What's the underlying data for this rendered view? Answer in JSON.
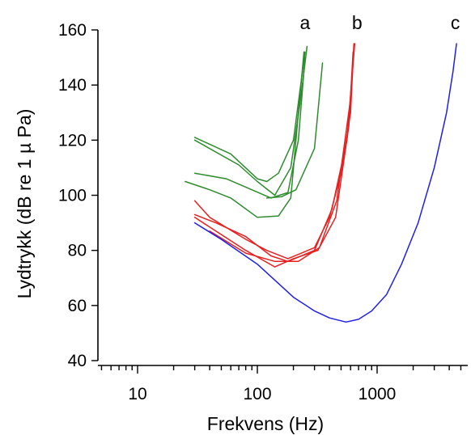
{
  "chart_data": {
    "type": "line",
    "xlabel": "Frekvens (Hz)",
    "ylabel": "Lydtrykk (dB re 1  µ Pa)",
    "xscale": "log",
    "xlim": [
      5,
      5000
    ],
    "ylim": [
      40,
      160
    ],
    "xticks": [
      {
        "value": 10,
        "label": "10"
      },
      {
        "value": 100,
        "label": "100"
      },
      {
        "value": 1000,
        "label": "1000"
      }
    ],
    "yticks": [
      {
        "value": 40,
        "label": "40"
      },
      {
        "value": 60,
        "label": "60"
      },
      {
        "value": 80,
        "label": "80"
      },
      {
        "value": 100,
        "label": "100"
      },
      {
        "value": 120,
        "label": "120"
      },
      {
        "value": 140,
        "label": "140"
      },
      {
        "value": 160,
        "label": "160"
      }
    ],
    "grid": false,
    "curve_labels": [
      {
        "text": "a",
        "x": 250,
        "y": 163
      },
      {
        "text": "b",
        "x": 680,
        "y": 163
      },
      {
        "text": "c",
        "x": 4500,
        "y": 163
      }
    ],
    "series": [
      {
        "group": "a",
        "color": "#2e8b2e",
        "points": [
          [
            30,
            121
          ],
          [
            60,
            115
          ],
          [
            100,
            106
          ],
          [
            120,
            105
          ],
          [
            150,
            108
          ],
          [
            200,
            120
          ],
          [
            250,
            152
          ]
        ]
      },
      {
        "group": "a",
        "color": "#2e8b2e",
        "points": [
          [
            30,
            120
          ],
          [
            70,
            111
          ],
          [
            100,
            105
          ],
          [
            140,
            100
          ],
          [
            190,
            110
          ],
          [
            230,
            135
          ],
          [
            260,
            154
          ]
        ]
      },
      {
        "group": "a",
        "color": "#2e8b2e",
        "points": [
          [
            30,
            108
          ],
          [
            55,
            106
          ],
          [
            90,
            102
          ],
          [
            130,
            99
          ],
          [
            180,
            101
          ],
          [
            220,
            120
          ],
          [
            250,
            150
          ]
        ]
      },
      {
        "group": "a",
        "color": "#2e8b2e",
        "points": [
          [
            25,
            105
          ],
          [
            40,
            102
          ],
          [
            60,
            99
          ],
          [
            100,
            92
          ],
          [
            150,
            92.5
          ],
          [
            190,
            99
          ],
          [
            215,
            125
          ],
          [
            245,
            152
          ]
        ]
      },
      {
        "group": "a",
        "color": "#2e8b2e",
        "points": [
          [
            120,
            99
          ],
          [
            160,
            99.5
          ],
          [
            210,
            102
          ],
          [
            300,
            117
          ],
          [
            350,
            148
          ]
        ]
      },
      {
        "group": "b",
        "color": "#e62020",
        "points": [
          [
            30,
            98
          ],
          [
            40,
            92
          ],
          [
            80,
            84
          ],
          [
            120,
            80
          ],
          [
            180,
            77
          ],
          [
            300,
            81
          ],
          [
            400,
            92
          ],
          [
            500,
            108
          ],
          [
            600,
            130
          ],
          [
            640,
            155
          ]
        ]
      },
      {
        "group": "b",
        "color": "#e62020",
        "points": [
          [
            30,
            93
          ],
          [
            45,
            90
          ],
          [
            80,
            85
          ],
          [
            130,
            78
          ],
          [
            180,
            76
          ],
          [
            300,
            80
          ],
          [
            420,
            95
          ],
          [
            560,
            120
          ],
          [
            650,
            155
          ]
        ]
      },
      {
        "group": "b",
        "color": "#e62020",
        "points": [
          [
            30,
            92
          ],
          [
            45,
            87
          ],
          [
            80,
            80
          ],
          [
            140,
            74
          ],
          [
            200,
            77
          ],
          [
            320,
            80
          ],
          [
            450,
            92
          ],
          [
            580,
            125
          ],
          [
            630,
            152
          ]
        ]
      },
      {
        "group": "b",
        "color": "#e62020",
        "points": [
          [
            40,
            87
          ],
          [
            80,
            79
          ],
          [
            140,
            76
          ],
          [
            220,
            76
          ],
          [
            330,
            81
          ],
          [
            460,
            98
          ],
          [
            600,
            135
          ]
        ]
      },
      {
        "group": "c",
        "color": "#2020e6",
        "points": [
          [
            30,
            90
          ],
          [
            50,
            84
          ],
          [
            100,
            75
          ],
          [
            200,
            63
          ],
          [
            300,
            58
          ],
          [
            400,
            55.5
          ],
          [
            550,
            54
          ],
          [
            700,
            55
          ],
          [
            900,
            58
          ],
          [
            1200,
            64
          ],
          [
            1600,
            75
          ],
          [
            2200,
            90
          ],
          [
            3000,
            110
          ],
          [
            3800,
            130
          ],
          [
            4300,
            145
          ],
          [
            4600,
            155
          ]
        ]
      }
    ]
  }
}
